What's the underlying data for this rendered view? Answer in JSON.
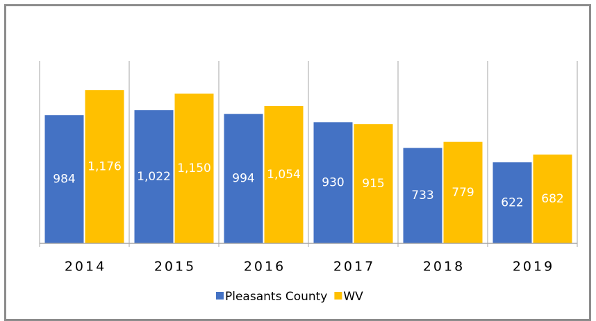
{
  "chart_data": {
    "type": "bar",
    "categories": [
      "2014",
      "2015",
      "2016",
      "2017",
      "2018",
      "2019"
    ],
    "series": [
      {
        "name": "Pleasants County",
        "color": "#4472c4",
        "values": [
          984,
          1022,
          994,
          930,
          733,
          622
        ],
        "value_labels": [
          "984",
          "1,022",
          "994",
          "930",
          "733",
          "622"
        ]
      },
      {
        "name": "WV",
        "color": "#ffc000",
        "values": [
          1176,
          1150,
          1054,
          915,
          779,
          682
        ],
        "value_labels": [
          "1,176",
          "1,150",
          "1,054",
          "915",
          "779",
          "682"
        ]
      }
    ],
    "ylim": [
      0,
      1400
    ],
    "legend": "bottom"
  }
}
